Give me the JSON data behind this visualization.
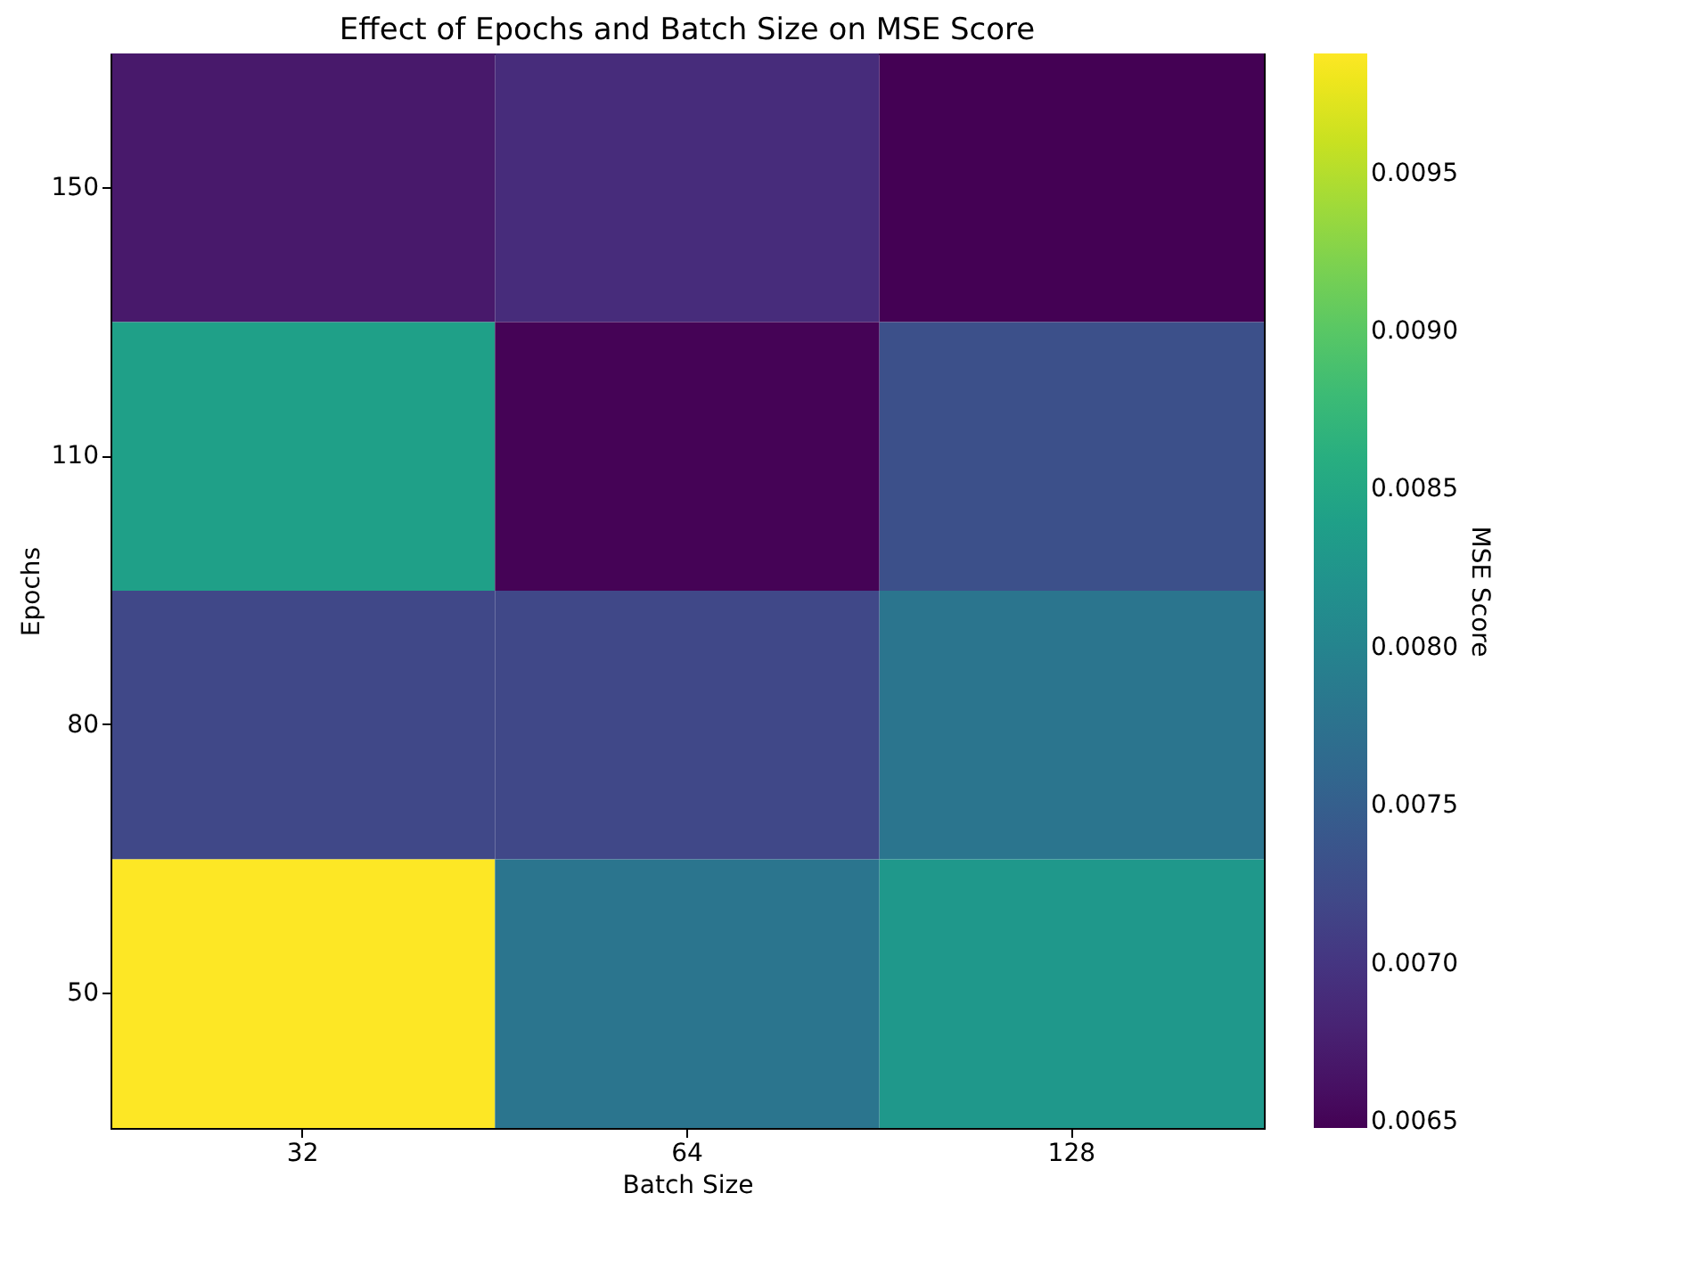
{
  "chart_data": {
    "type": "heatmap",
    "title": "Effect of Epochs and Batch Size on MSE Score",
    "xlabel": "Batch Size",
    "ylabel": "Epochs",
    "clabel": "MSE Score",
    "categories": [
      "32",
      "64",
      "128"
    ],
    "y_categories": [
      "150",
      "110",
      "80",
      "50"
    ],
    "cells": [
      [
        0.0067,
        0.0069,
        0.00648
      ],
      [
        0.0084,
        0.0065,
        0.0073
      ],
      [
        0.0072,
        0.0072,
        0.0078
      ],
      [
        0.00988,
        0.0078,
        0.0083
      ]
    ],
    "clim": [
      0.00648,
      0.00988
    ],
    "cticks": [
      0.0065,
      {
        "value": 0.007,
        "label": "0.0070"
      },
      0.0075,
      {
        "value": 0.008,
        "label": "0.0080"
      },
      0.0085,
      {
        "value": 0.009,
        "label": "0.0090"
      },
      0.0095
    ],
    "grid": false
  }
}
